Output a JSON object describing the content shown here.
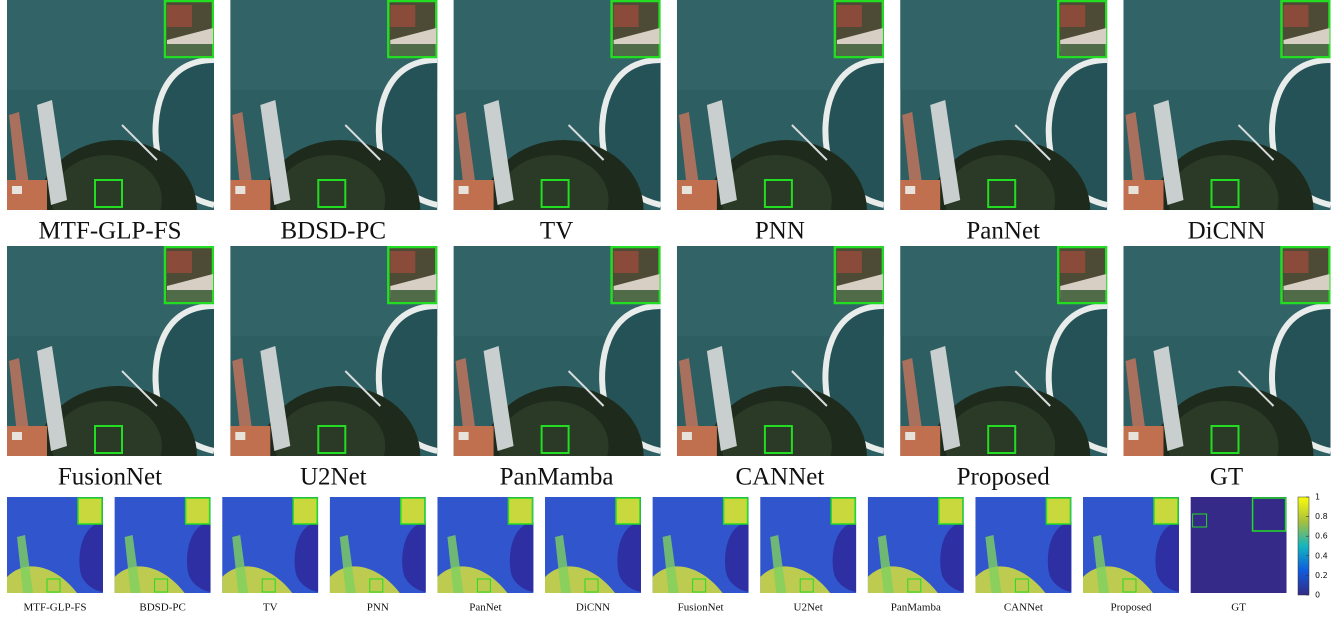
{
  "rows": [
    {
      "labels": [
        "MTF-GLP-FS",
        "BDSD-PC",
        "TV",
        "PNN",
        "PanNet",
        "DiCNN"
      ]
    },
    {
      "labels": [
        "FusionNet",
        "U2Net",
        "PanMamba",
        "CANNet",
        "Proposed",
        "GT"
      ]
    }
  ],
  "error_maps": {
    "labels": [
      "MTF-GLP-FS",
      "BDSD-PC",
      "TV",
      "PNN",
      "PanNet",
      "DiCNN",
      "FusionNet",
      "U2Net",
      "PanMamba",
      "CANNet",
      "Proposed",
      "GT"
    ]
  },
  "colorbar": {
    "range": [
      0,
      1
    ],
    "ticks": [
      0,
      0.2,
      0.4,
      0.6,
      0.8,
      1
    ]
  }
}
